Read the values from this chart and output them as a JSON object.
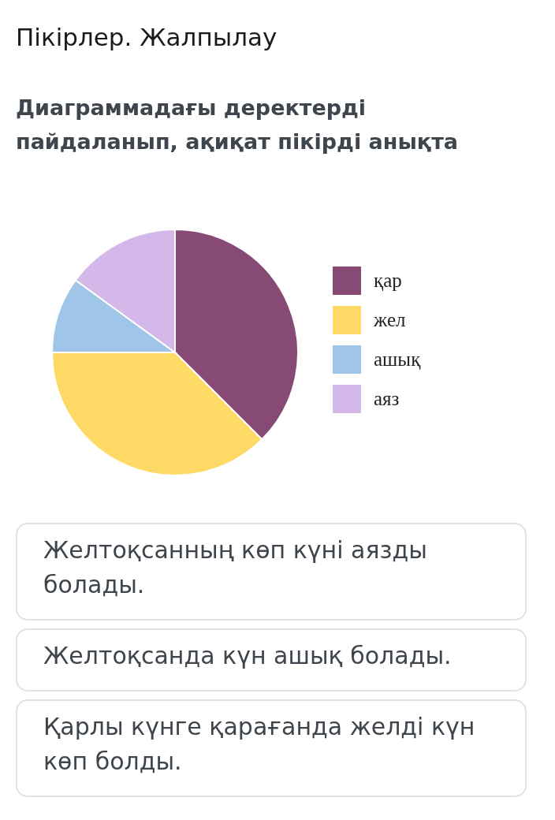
{
  "chart_data": {
    "type": "pie",
    "title": "Пікірлер. Жалпылау",
    "subtitle": "Диаграммадағы деректерді пайдаланып, ақиқат пікірді анықта",
    "categories": [
      "қар",
      "жел",
      "ашық",
      "аяз"
    ],
    "values": [
      37.5,
      37.5,
      10,
      15
    ],
    "colors": [
      "#874a75",
      "#ffd966",
      "#9fc5e8",
      "#d5b8ea"
    ],
    "legend": "right",
    "annotations": [
      "Желтоқсанның көп күні аязды болады.",
      "Желтоқсанда күн ашық болады.",
      "Қарлы күнге қарағанда желді күн көп болды."
    ]
  }
}
